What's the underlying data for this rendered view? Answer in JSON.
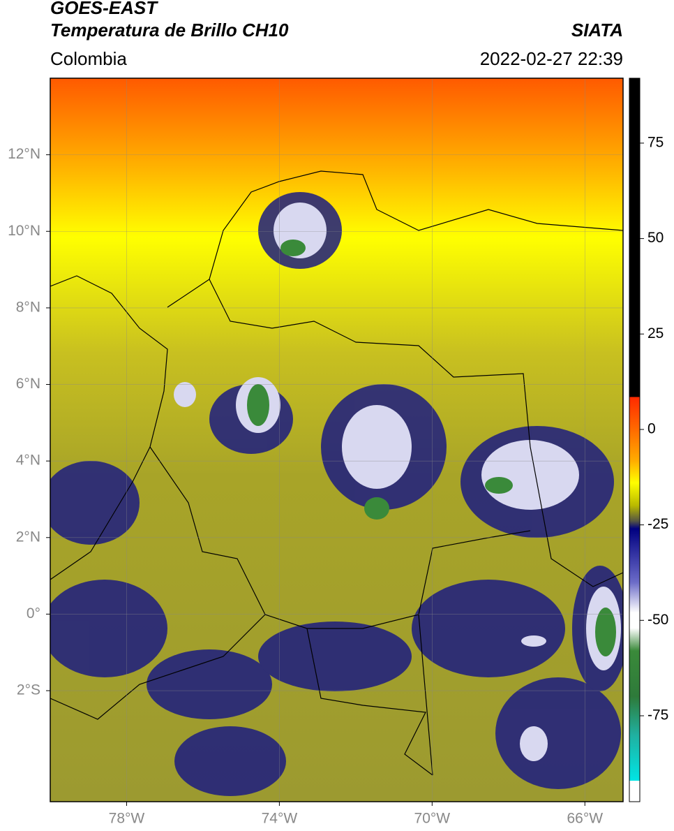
{
  "header": {
    "title_line1": "GOES-EAST",
    "title_line2": "Temperatura de Brillo CH10",
    "region": "Colombia",
    "source": "SIATA",
    "datetime": "2022-02-27 22:39"
  },
  "map": {
    "xlim": [
      -80,
      -65
    ],
    "ylim": [
      -4.9,
      14
    ],
    "xticks": [
      {
        "value": -78,
        "label": "78°W"
      },
      {
        "value": -74,
        "label": "74°W"
      },
      {
        "value": -70,
        "label": "70°W"
      },
      {
        "value": -66,
        "label": "66°W"
      }
    ],
    "yticks": [
      {
        "value": 12,
        "label": "12°N"
      },
      {
        "value": 10,
        "label": "10°N"
      },
      {
        "value": 8,
        "label": "8°N"
      },
      {
        "value": 6,
        "label": "6°N"
      },
      {
        "value": 4,
        "label": "4°N"
      },
      {
        "value": 2,
        "label": "2°N"
      },
      {
        "value": 0,
        "label": "0°"
      },
      {
        "value": -2,
        "label": "2°S"
      }
    ],
    "grid": true
  },
  "colorbar": {
    "lim": [
      -97.5,
      92
    ],
    "ticks": [
      75,
      50,
      25,
      0,
      -25,
      -50,
      -75
    ],
    "stops": [
      {
        "value": 92,
        "color": "#000000"
      },
      {
        "value": 8.5,
        "color": "#000000"
      },
      {
        "value": 8.5,
        "color": "#ff2a00"
      },
      {
        "value": 0,
        "color": "#ff6a00"
      },
      {
        "value": -8,
        "color": "#ffaa00"
      },
      {
        "value": -14,
        "color": "#ffff00"
      },
      {
        "value": -20,
        "color": "#b8b800"
      },
      {
        "value": -24,
        "color": "#555544"
      },
      {
        "value": -26,
        "color": "#000080"
      },
      {
        "value": -40,
        "color": "#6b6bc8"
      },
      {
        "value": -48,
        "color": "#ffffff"
      },
      {
        "value": -52,
        "color": "#ffffff"
      },
      {
        "value": -58,
        "color": "#3a8a3a"
      },
      {
        "value": -70,
        "color": "#2e7a3a"
      },
      {
        "value": -80,
        "color": "#20b0a0"
      },
      {
        "value": -92,
        "color": "#00e5e5"
      },
      {
        "value": -92,
        "color": "#ffffff"
      },
      {
        "value": -97.5,
        "color": "#ffffff"
      }
    ]
  }
}
